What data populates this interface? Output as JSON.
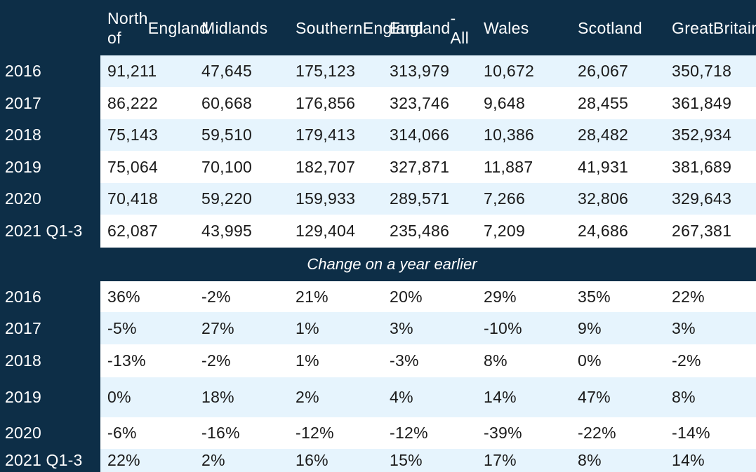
{
  "columns": [
    "North of England",
    "Midlands",
    "Southern England",
    "England - All",
    "Wales",
    "Scotland",
    "Great Britain"
  ],
  "columns_display": [
    [
      "North of",
      "England"
    ],
    [
      "Midlands"
    ],
    [
      "Southern",
      "England"
    ],
    [
      "England",
      "- All"
    ],
    [
      "Wales"
    ],
    [
      "Scotland"
    ],
    [
      "Great",
      "Britain"
    ]
  ],
  "counts": [
    {
      "year": "2016",
      "values": [
        "91,211",
        "47,645",
        "175,123",
        "313,979",
        "10,672",
        "26,067",
        "350,718"
      ]
    },
    {
      "year": "2017",
      "values": [
        "86,222",
        "60,668",
        "176,856",
        "323,746",
        "9,648",
        "28,455",
        "361,849"
      ]
    },
    {
      "year": "2018",
      "values": [
        "75,143",
        "59,510",
        "179,413",
        "314,066",
        "10,386",
        "28,482",
        "352,934"
      ]
    },
    {
      "year": "2019",
      "values": [
        "75,064",
        "70,100",
        "182,707",
        "327,871",
        "11,887",
        "41,931",
        "381,689"
      ]
    },
    {
      "year": "2020",
      "values": [
        "70,418",
        "59,220",
        "159,933",
        "289,571",
        "7,266",
        "32,806",
        "329,643"
      ]
    },
    {
      "year": "2021 Q1-3",
      "values": [
        "62,087",
        "43,995",
        "129,404",
        "235,486",
        "7,209",
        "24,686",
        "267,381"
      ]
    }
  ],
  "section_label": "Change on a year earlier",
  "changes": [
    {
      "year": "2016",
      "values": [
        "36%",
        "-2%",
        "21%",
        "20%",
        "29%",
        "35%",
        "22%"
      ]
    },
    {
      "year": "2017",
      "values": [
        "-5%",
        "27%",
        "1%",
        "3%",
        "-10%",
        "9%",
        "3%"
      ]
    },
    {
      "year": "2018",
      "values": [
        "-13%",
        "-2%",
        "1%",
        "-3%",
        "8%",
        "0%",
        "-2%"
      ]
    },
    {
      "year": "2019",
      "values": [
        "0%",
        "18%",
        "2%",
        "4%",
        "14%",
        "47%",
        "8%"
      ]
    },
    {
      "year": "2020",
      "values": [
        "-6%",
        "-16%",
        "-12%",
        "-12%",
        "-39%",
        "-22%",
        "-14%"
      ]
    },
    {
      "year": "2021 Q1-3",
      "values": [
        "22%",
        "2%",
        "16%",
        "15%",
        "17%",
        "8%",
        "14%"
      ]
    }
  ],
  "colors": {
    "header_bg": "#0d2e47",
    "band_light": "#e6f4fd",
    "band_white": "#ffffff"
  }
}
